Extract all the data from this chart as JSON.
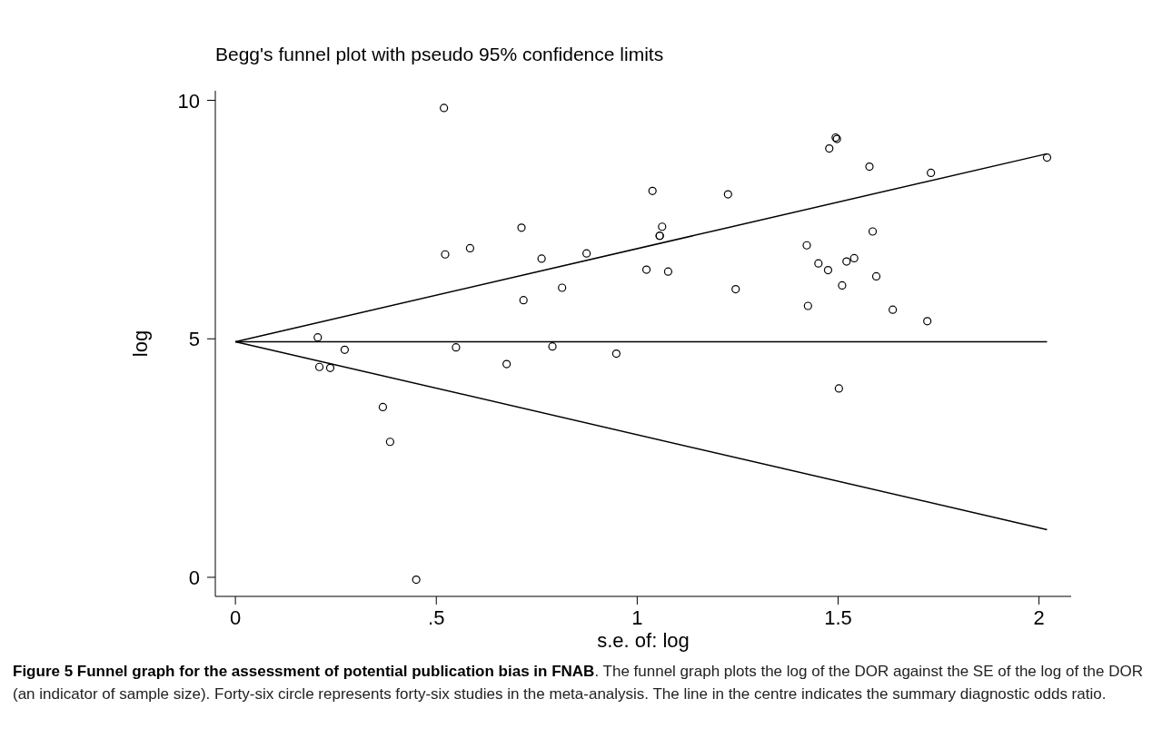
{
  "chart_data": {
    "type": "scatter",
    "title": "Begg's funnel plot with pseudo 95% confidence limits",
    "xlabel": "s.e. of: log",
    "ylabel": "log",
    "xlim": [
      -0.05,
      2.08
    ],
    "ylim": [
      -0.4,
      10.2
    ],
    "xticks": [
      0,
      {
        "value": 0.5,
        "label": ".5"
      },
      1,
      1.5,
      2
    ],
    "yticks": [
      0,
      5,
      10
    ],
    "grid": false,
    "marker": "circle",
    "series": [
      {
        "color": "#000000",
        "x": [
          0.519,
          0.712,
          0.522,
          0.584,
          0.762,
          0.874,
          0.813,
          0.717,
          0.205,
          0.272,
          0.209,
          0.236,
          0.549,
          0.675,
          0.789,
          0.367,
          0.385,
          0.45,
          1.494,
          1.497,
          1.478,
          1.578,
          1.731,
          1.038,
          1.226,
          1.062,
          1.056,
          1.056,
          1.586,
          1.422,
          1.023,
          1.077,
          1.451,
          1.521,
          1.54,
          1.475,
          1.595,
          1.51,
          1.245,
          1.425,
          1.636,
          1.722,
          0.948,
          1.502,
          2.02
        ],
        "values": [
          9.84,
          7.33,
          6.77,
          6.9,
          6.68,
          6.79,
          6.07,
          5.81,
          5.03,
          4.77,
          4.41,
          4.39,
          4.82,
          4.47,
          4.84,
          3.57,
          2.84,
          -0.05,
          9.22,
          9.19,
          8.99,
          8.61,
          8.48,
          8.1,
          8.03,
          7.35,
          7.16,
          7.16,
          7.25,
          6.96,
          6.45,
          6.41,
          6.58,
          6.62,
          6.69,
          6.44,
          6.31,
          6.12,
          6.04,
          5.69,
          5.61,
          5.37,
          4.69,
          3.96,
          8.8
        ]
      },
      {
        "type": "line",
        "color": "#000000",
        "marker": "none",
        "x": [
          0,
          2.02
        ],
        "values": [
          4.94,
          8.88
        ]
      },
      {
        "type": "line",
        "color": "#000000",
        "marker": "none",
        "x": [
          0,
          2.02
        ],
        "values": [
          4.94,
          4.94
        ]
      },
      {
        "type": "line",
        "color": "#000000",
        "marker": "none",
        "x": [
          0,
          2.02
        ],
        "values": [
          4.94,
          1.0
        ]
      }
    ],
    "annotations": [
      "Figure 5 Funnel graph for the assessment of potential publication bias in FNAB",
      ". The funnel graph plots the log of the DOR against the SE of the log of the DOR (an indicator of sample size). Forty-six circle represents forty-six studies in the meta-analysis. The line in the centre indicates the summary diagnostic odds ratio."
    ]
  }
}
